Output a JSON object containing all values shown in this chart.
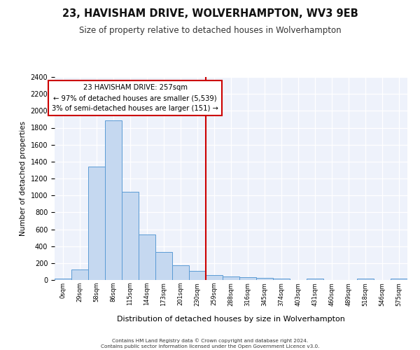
{
  "title": "23, HAVISHAM DRIVE, WOLVERHAMPTON, WV3 9EB",
  "subtitle": "Size of property relative to detached houses in Wolverhampton",
  "xlabel": "Distribution of detached houses by size in Wolverhampton",
  "ylabel": "Number of detached properties",
  "bar_values": [
    15,
    125,
    1340,
    1890,
    1040,
    540,
    335,
    170,
    110,
    55,
    40,
    35,
    25,
    20,
    0,
    20,
    0,
    0,
    15,
    0,
    15
  ],
  "bar_labels": [
    "0sqm",
    "29sqm",
    "58sqm",
    "86sqm",
    "115sqm",
    "144sqm",
    "173sqm",
    "201sqm",
    "230sqm",
    "259sqm",
    "288sqm",
    "316sqm",
    "345sqm",
    "374sqm",
    "403sqm",
    "431sqm",
    "460sqm",
    "489sqm",
    "518sqm",
    "546sqm",
    "575sqm"
  ],
  "bar_color": "#c5d8f0",
  "bar_edge_color": "#5b9bd5",
  "background_color": "#eef2fb",
  "grid_color": "#ffffff",
  "vline_x_index": 9,
  "vline_color": "#cc0000",
  "annotation_text": "23 HAVISHAM DRIVE: 257sqm\n← 97% of detached houses are smaller (5,539)\n3% of semi-detached houses are larger (151) →",
  "annotation_box_color": "#cc0000",
  "ylim": [
    0,
    2400
  ],
  "yticks": [
    0,
    200,
    400,
    600,
    800,
    1000,
    1200,
    1400,
    1600,
    1800,
    2000,
    2200,
    2400
  ],
  "footer_line1": "Contains HM Land Registry data © Crown copyright and database right 2024.",
  "footer_line2": "Contains public sector information licensed under the Open Government Licence v3.0."
}
